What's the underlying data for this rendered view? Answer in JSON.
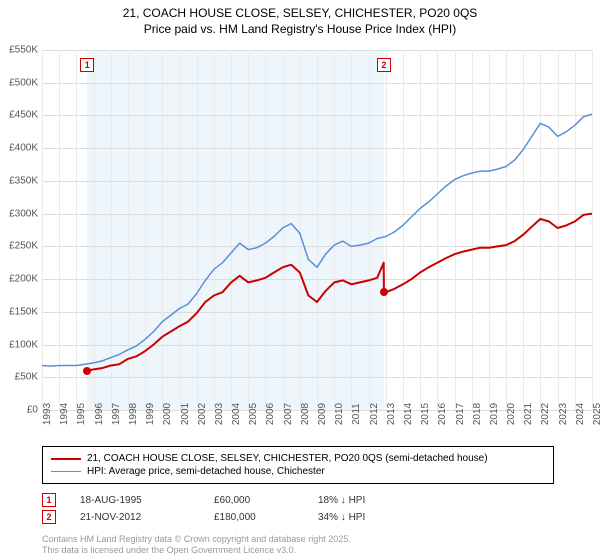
{
  "title_line1": "21, COACH HOUSE CLOSE, SELSEY, CHICHESTER, PO20 0QS",
  "title_line2": "Price paid vs. HM Land Registry's House Price Index (HPI)",
  "chart": {
    "type": "line",
    "background_color": "#ffffff",
    "grid_color": "#dcdcdc",
    "xgrid_color": "#eaeaea",
    "shade_color": "#cfe2f3",
    "shade_opacity": 0.35,
    "ylim": [
      0,
      550000
    ],
    "ytick_step": 50000,
    "y_ticks": [
      "£0",
      "£50K",
      "£100K",
      "£150K",
      "£200K",
      "£250K",
      "£300K",
      "£350K",
      "£400K",
      "£450K",
      "£500K",
      "£550K"
    ],
    "x_years": [
      1993,
      1994,
      1995,
      1996,
      1997,
      1998,
      1999,
      2000,
      2001,
      2002,
      2003,
      2004,
      2005,
      2006,
      2007,
      2008,
      2009,
      2010,
      2011,
      2012,
      2013,
      2014,
      2015,
      2016,
      2017,
      2018,
      2019,
      2020,
      2021,
      2022,
      2023,
      2024,
      2025
    ],
    "shade_start_year": 1995.63,
    "shade_end_year": 2012.89,
    "series": [
      {
        "name": "property",
        "color": "#cc0000",
        "width": 2,
        "points": [
          [
            1995.63,
            60000
          ],
          [
            1996,
            62000
          ],
          [
            1996.5,
            64000
          ],
          [
            1997,
            68000
          ],
          [
            1997.5,
            70000
          ],
          [
            1998,
            78000
          ],
          [
            1998.5,
            82000
          ],
          [
            1999,
            90000
          ],
          [
            1999.5,
            100000
          ],
          [
            2000,
            112000
          ],
          [
            2000.5,
            120000
          ],
          [
            2001,
            128000
          ],
          [
            2001.5,
            135000
          ],
          [
            2002,
            148000
          ],
          [
            2002.5,
            165000
          ],
          [
            2003,
            175000
          ],
          [
            2003.5,
            180000
          ],
          [
            2004,
            195000
          ],
          [
            2004.5,
            205000
          ],
          [
            2005,
            195000
          ],
          [
            2005.5,
            198000
          ],
          [
            2006,
            202000
          ],
          [
            2006.5,
            210000
          ],
          [
            2007,
            218000
          ],
          [
            2007.5,
            222000
          ],
          [
            2008,
            210000
          ],
          [
            2008.5,
            175000
          ],
          [
            2009,
            165000
          ],
          [
            2009.5,
            182000
          ],
          [
            2010,
            195000
          ],
          [
            2010.5,
            198000
          ],
          [
            2011,
            192000
          ],
          [
            2011.5,
            195000
          ],
          [
            2012,
            198000
          ],
          [
            2012.5,
            202000
          ],
          [
            2012.88,
            225000
          ],
          [
            2012.89,
            180000
          ],
          [
            2013,
            180000
          ],
          [
            2013.5,
            185000
          ],
          [
            2014,
            192000
          ],
          [
            2014.5,
            200000
          ],
          [
            2015,
            210000
          ],
          [
            2015.5,
            218000
          ],
          [
            2016,
            225000
          ],
          [
            2016.5,
            232000
          ],
          [
            2017,
            238000
          ],
          [
            2017.5,
            242000
          ],
          [
            2018,
            245000
          ],
          [
            2018.5,
            248000
          ],
          [
            2019,
            248000
          ],
          [
            2019.5,
            250000
          ],
          [
            2020,
            252000
          ],
          [
            2020.5,
            258000
          ],
          [
            2021,
            268000
          ],
          [
            2021.5,
            280000
          ],
          [
            2022,
            292000
          ],
          [
            2022.5,
            288000
          ],
          [
            2023,
            278000
          ],
          [
            2023.5,
            282000
          ],
          [
            2024,
            288000
          ],
          [
            2024.5,
            298000
          ],
          [
            2025,
            300000
          ]
        ]
      },
      {
        "name": "hpi",
        "color": "#5b8fd6",
        "width": 1.5,
        "points": [
          [
            1993,
            68000
          ],
          [
            1993.5,
            67000
          ],
          [
            1994,
            68000
          ],
          [
            1994.5,
            68000
          ],
          [
            1995,
            68000
          ],
          [
            1995.5,
            70000
          ],
          [
            1996,
            72000
          ],
          [
            1996.5,
            75000
          ],
          [
            1997,
            80000
          ],
          [
            1997.5,
            85000
          ],
          [
            1998,
            92000
          ],
          [
            1998.5,
            98000
          ],
          [
            1999,
            108000
          ],
          [
            1999.5,
            120000
          ],
          [
            2000,
            135000
          ],
          [
            2000.5,
            145000
          ],
          [
            2001,
            155000
          ],
          [
            2001.5,
            162000
          ],
          [
            2002,
            178000
          ],
          [
            2002.5,
            198000
          ],
          [
            2003,
            215000
          ],
          [
            2003.5,
            225000
          ],
          [
            2004,
            240000
          ],
          [
            2004.5,
            255000
          ],
          [
            2005,
            245000
          ],
          [
            2005.5,
            248000
          ],
          [
            2006,
            255000
          ],
          [
            2006.5,
            265000
          ],
          [
            2007,
            278000
          ],
          [
            2007.5,
            285000
          ],
          [
            2008,
            270000
          ],
          [
            2008.5,
            230000
          ],
          [
            2009,
            218000
          ],
          [
            2009.5,
            238000
          ],
          [
            2010,
            252000
          ],
          [
            2010.5,
            258000
          ],
          [
            2011,
            250000
          ],
          [
            2011.5,
            252000
          ],
          [
            2012,
            255000
          ],
          [
            2012.5,
            262000
          ],
          [
            2013,
            265000
          ],
          [
            2013.5,
            272000
          ],
          [
            2014,
            282000
          ],
          [
            2014.5,
            295000
          ],
          [
            2015,
            308000
          ],
          [
            2015.5,
            318000
          ],
          [
            2016,
            330000
          ],
          [
            2016.5,
            342000
          ],
          [
            2017,
            352000
          ],
          [
            2017.5,
            358000
          ],
          [
            2018,
            362000
          ],
          [
            2018.5,
            365000
          ],
          [
            2019,
            365000
          ],
          [
            2019.5,
            368000
          ],
          [
            2020,
            372000
          ],
          [
            2020.5,
            382000
          ],
          [
            2021,
            398000
          ],
          [
            2021.5,
            418000
          ],
          [
            2022,
            438000
          ],
          [
            2022.5,
            432000
          ],
          [
            2023,
            418000
          ],
          [
            2023.5,
            425000
          ],
          [
            2024,
            435000
          ],
          [
            2024.5,
            448000
          ],
          [
            2025,
            452000
          ]
        ]
      }
    ],
    "markers": [
      {
        "label": "1",
        "year": 1995.63,
        "price": 60000
      },
      {
        "label": "2",
        "year": 2012.89,
        "price": 180000
      }
    ]
  },
  "legend": {
    "series1_label": "21, COACH HOUSE CLOSE, SELSEY, CHICHESTER, PO20 0QS (semi-detached house)",
    "series1_color": "#cc0000",
    "series2_label": "HPI: Average price, semi-detached house, Chichester",
    "series2_color": "#5b8fd6"
  },
  "sales": [
    {
      "marker": "1",
      "date": "18-AUG-1995",
      "price": "£60,000",
      "delta": "18% ↓ HPI"
    },
    {
      "marker": "2",
      "date": "21-NOV-2012",
      "price": "£180,000",
      "delta": "34% ↓ HPI"
    }
  ],
  "footer_line1": "Contains HM Land Registry data © Crown copyright and database right 2025.",
  "footer_line2": "This data is licensed under the Open Government Licence v3.0."
}
